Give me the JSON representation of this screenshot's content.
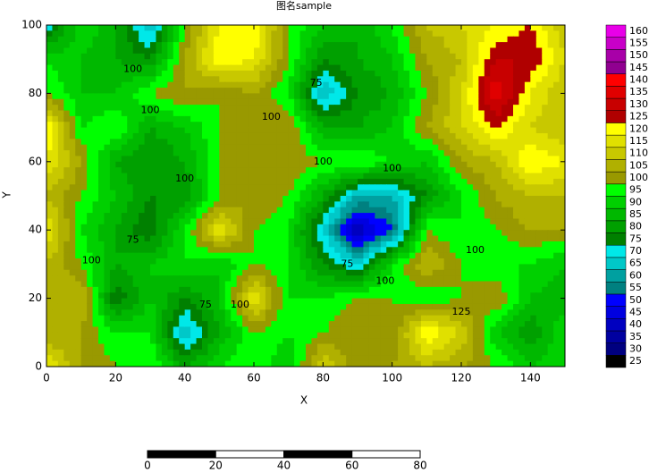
{
  "chart_data": {
    "type": "contour",
    "title": "图名sample",
    "x_label": "X",
    "y_label": "Y",
    "x": [
      0,
      10,
      20,
      30,
      40,
      50,
      60,
      70,
      80,
      90,
      100,
      110,
      120,
      130,
      140,
      150
    ],
    "y": [
      100,
      90,
      80,
      70,
      60,
      50,
      40,
      30,
      20,
      10,
      0
    ],
    "z": [
      [
        70,
        95,
        85,
        65,
        100,
        120,
        125,
        100,
        90,
        85,
        95,
        110,
        115,
        120,
        125,
        110
      ],
      [
        95,
        90,
        85,
        80,
        105,
        125,
        120,
        100,
        80,
        85,
        90,
        105,
        110,
        130,
        130,
        115
      ],
      [
        100,
        90,
        90,
        100,
        105,
        100,
        105,
        95,
        65,
        80,
        85,
        100,
        115,
        140,
        120,
        110
      ],
      [
        125,
        95,
        100,
        85,
        90,
        100,
        100,
        105,
        85,
        85,
        90,
        105,
        115,
        125,
        115,
        110
      ],
      [
        120,
        105,
        85,
        80,
        85,
        100,
        105,
        105,
        100,
        100,
        95,
        90,
        105,
        110,
        125,
        120
      ],
      [
        110,
        100,
        90,
        80,
        80,
        100,
        105,
        100,
        85,
        65,
        65,
        80,
        95,
        105,
        110,
        110
      ],
      [
        120,
        95,
        85,
        75,
        95,
        120,
        100,
        95,
        70,
        40,
        55,
        100,
        95,
        100,
        105,
        105
      ],
      [
        110,
        100,
        85,
        90,
        95,
        90,
        100,
        95,
        80,
        70,
        95,
        110,
        100,
        95,
        95,
        90
      ],
      [
        105,
        110,
        75,
        90,
        80,
        90,
        120,
        95,
        95,
        100,
        100,
        95,
        100,
        105,
        90,
        85
      ],
      [
        105,
        105,
        95,
        95,
        65,
        85,
        100,
        95,
        100,
        105,
        100,
        125,
        115,
        90,
        80,
        95
      ],
      [
        120,
        105,
        100,
        100,
        85,
        95,
        100,
        90,
        115,
        100,
        105,
        110,
        105,
        100,
        90,
        95
      ]
    ],
    "xlim": [
      0,
      150
    ],
    "ylim": [
      0,
      100
    ],
    "xticks": [
      0,
      20,
      40,
      60,
      80,
      100,
      120,
      140
    ],
    "yticks": [
      0,
      20,
      40,
      60,
      80,
      100
    ],
    "levels": [
      25,
      30,
      35,
      40,
      45,
      50,
      55,
      60,
      65,
      70,
      75,
      80,
      85,
      90,
      95,
      100,
      105,
      110,
      115,
      120,
      125,
      130,
      135,
      140,
      145,
      150,
      155,
      160
    ],
    "colors": [
      "#000000",
      "#000080",
      "#0000a0",
      "#0000c0",
      "#0000e0",
      "#0000ff",
      "#008080",
      "#00a0a0",
      "#00c8c8",
      "#00e8e8",
      "#008000",
      "#00a000",
      "#00b800",
      "#00d000",
      "#00ff00",
      "#999900",
      "#b0b000",
      "#c8c800",
      "#e0e000",
      "#ffff00",
      "#b00000",
      "#c80000",
      "#e00000",
      "#ff0000",
      "#900090",
      "#a800a8",
      "#c800c8",
      "#e800e8"
    ],
    "annotations": [
      {
        "text": "100",
        "x": 25,
        "y": 87
      },
      {
        "text": "100",
        "x": 30,
        "y": 75
      },
      {
        "text": "75",
        "x": 78,
        "y": 83
      },
      {
        "text": "100",
        "x": 65,
        "y": 73
      },
      {
        "text": "100",
        "x": 80,
        "y": 60
      },
      {
        "text": "100",
        "x": 100,
        "y": 58
      },
      {
        "text": "100",
        "x": 40,
        "y": 55
      },
      {
        "text": "75",
        "x": 25,
        "y": 37
      },
      {
        "text": "100",
        "x": 13,
        "y": 31
      },
      {
        "text": "75",
        "x": 87,
        "y": 30
      },
      {
        "text": "100",
        "x": 98,
        "y": 25
      },
      {
        "text": "100",
        "x": 124,
        "y": 34
      },
      {
        "text": "75",
        "x": 46,
        "y": 18
      },
      {
        "text": "100",
        "x": 56,
        "y": 18
      },
      {
        "text": "125",
        "x": 120,
        "y": 16
      }
    ],
    "scale_bar": {
      "ticks": [
        0,
        20,
        40,
        60,
        80
      ]
    }
  }
}
